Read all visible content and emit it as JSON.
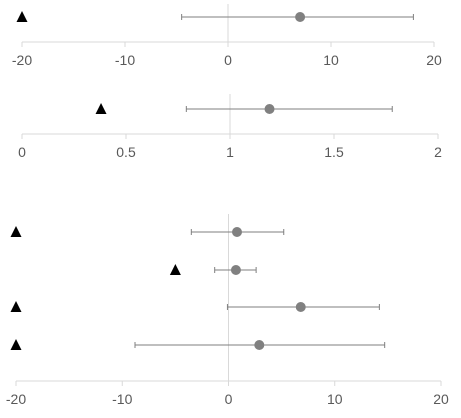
{
  "chart_data": [
    {
      "type": "scatter",
      "title": "",
      "xlabel": "",
      "ylabel": "",
      "xlim": [
        -20,
        20
      ],
      "xticks": [
        -20,
        -10,
        0,
        10,
        20
      ],
      "tick_labels": [
        "-20",
        "-10",
        "0",
        "10",
        "20"
      ],
      "reference_line": 0,
      "grid": false,
      "rows": [
        {
          "estimate": 7,
          "ci_low": -4.5,
          "ci_high": 18,
          "triangle": -20
        }
      ]
    },
    {
      "type": "scatter",
      "title": "",
      "xlabel": "",
      "ylabel": "",
      "xlim": [
        0,
        2
      ],
      "xticks": [
        0,
        0.5,
        1,
        1.5,
        2
      ],
      "tick_labels": [
        "0",
        "0.5",
        "1",
        "1.5",
        "2"
      ],
      "reference_line": 1,
      "grid": false,
      "rows": [
        {
          "estimate": 1.19,
          "ci_low": 0.79,
          "ci_high": 1.78,
          "triangle": 0.38
        }
      ]
    },
    {
      "type": "scatter",
      "title": "",
      "xlabel": "",
      "ylabel": "",
      "xlim": [
        -20,
        20
      ],
      "xticks": [
        -20,
        -10,
        0,
        10,
        20
      ],
      "tick_labels": [
        "-20",
        "-10",
        "0",
        "10",
        "20"
      ],
      "reference_line": 0,
      "grid": false,
      "rows": [
        {
          "estimate": 0.8,
          "ci_low": -3.5,
          "ci_high": 5.2,
          "triangle": -20
        },
        {
          "estimate": 0.7,
          "ci_low": -1.3,
          "ci_high": 2.6,
          "triangle": -5
        },
        {
          "estimate": 6.8,
          "ci_low": -0.1,
          "ci_high": 14.2,
          "triangle": -20
        },
        {
          "estimate": 2.9,
          "ci_low": -8.8,
          "ci_high": 14.7,
          "triangle": -20
        }
      ]
    }
  ],
  "colors": {
    "axis": "#d9d9d9",
    "tick_label": "#595959",
    "point": "#808080",
    "ci_line": "#7f7f7f",
    "triangle": "#000000"
  }
}
